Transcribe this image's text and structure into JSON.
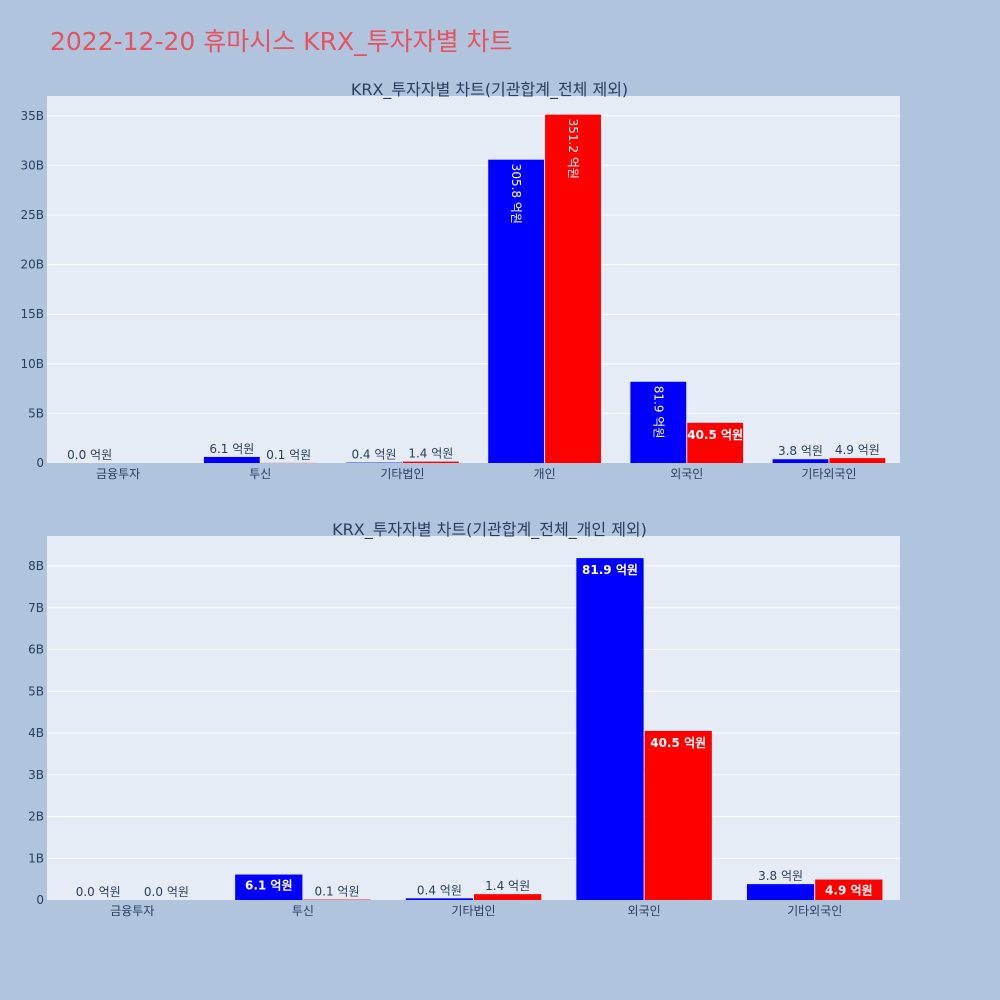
{
  "page": {
    "title": "2022-12-20 휴마시스 KRX_투자자별 차트"
  },
  "colors": {
    "buy": "#0000ff",
    "sell": "#ff0000",
    "text": "#2a3f5f"
  },
  "chart_data": [
    {
      "type": "bar",
      "title": "KRX_투자자별 차트(기관합계_전체 제외)",
      "categories": [
        "금융투자",
        "투신",
        "기타법인",
        "개인",
        "외국인",
        "기타외국인"
      ],
      "series": [
        {
          "color": "#0000ff",
          "values": [
            0.0,
            0.61,
            0.04,
            30.58,
            8.19,
            0.38
          ],
          "labels": [
            "0.0 억원",
            "6.1 억원",
            "0.4 억원",
            "305.8 억원",
            "81.9 억원",
            "3.8 억원"
          ]
        },
        {
          "color": "#ff0000",
          "values": [
            0.0,
            0.01,
            0.14,
            35.12,
            4.05,
            0.49
          ],
          "labels": [
            "",
            "0.1 억원",
            "1.4 억원",
            "351.2 억원",
            "40.5 억원",
            "4.9 억원"
          ]
        }
      ],
      "yticks": [
        "0",
        "5B",
        "10B",
        "15B",
        "20B",
        "25B",
        "30B",
        "35B"
      ],
      "ytick_values": [
        0,
        5,
        10,
        15,
        20,
        25,
        30,
        35
      ],
      "ylim": [
        0,
        37
      ],
      "grid": true
    },
    {
      "type": "bar",
      "title": "KRX_투자자별 차트(기관합계_전체_개인 제외)",
      "categories": [
        "금융투자",
        "투신",
        "기타법인",
        "외국인",
        "기타외국인"
      ],
      "series": [
        {
          "color": "#0000ff",
          "values": [
            0.0,
            0.61,
            0.04,
            8.19,
            0.38
          ],
          "labels": [
            "0.0 억원",
            "6.1 억원",
            "0.4 억원",
            "81.9 억원",
            "3.8 억원"
          ]
        },
        {
          "color": "#ff0000",
          "values": [
            0.0,
            0.01,
            0.14,
            4.05,
            0.49
          ],
          "labels": [
            "0.0 억원",
            "0.1 억원",
            "1.4 억원",
            "40.5 억원",
            "4.9 억원"
          ]
        }
      ],
      "yticks": [
        "0",
        "1B",
        "2B",
        "3B",
        "4B",
        "5B",
        "6B",
        "7B",
        "8B"
      ],
      "ytick_values": [
        0,
        1,
        2,
        3,
        4,
        5,
        6,
        7,
        8
      ],
      "ylim": [
        0,
        8.72
      ],
      "grid": true
    }
  ]
}
